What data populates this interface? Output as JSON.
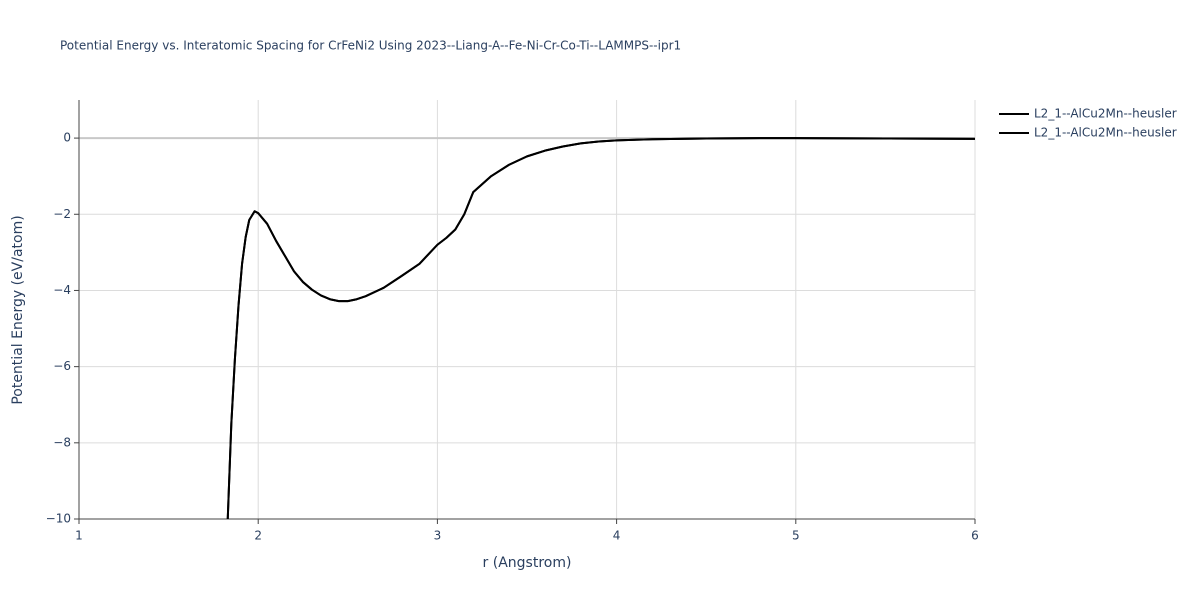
{
  "chart_data": {
    "type": "line",
    "title": "Potential Energy vs. Interatomic Spacing for CrFeNi2 Using 2023--Liang-A--Fe-Ni-Cr-Co-Ti--LAMMPS--ipr1",
    "x_label": "r (Angstrom)",
    "y_label": "Potential Energy (eV/atom)",
    "xlim": [
      1,
      6
    ],
    "ylim": [
      -10,
      1
    ],
    "xticks": [
      1,
      2,
      3,
      4,
      5,
      6
    ],
    "yticks": [
      {
        "value": -10,
        "label": "−10"
      },
      {
        "value": -8,
        "label": "−8"
      },
      {
        "value": -6,
        "label": "−6"
      },
      {
        "value": -4,
        "label": "−4"
      },
      {
        "value": -2,
        "label": "−2"
      },
      0
    ],
    "grid": true,
    "legend": "right",
    "x": [
      1.83,
      1.85,
      1.87,
      1.89,
      1.91,
      1.93,
      1.95,
      1.98,
      2.0,
      2.05,
      2.1,
      2.15,
      2.2,
      2.25,
      2.3,
      2.35,
      2.4,
      2.45,
      2.5,
      2.55,
      2.6,
      2.7,
      2.8,
      2.9,
      3.0,
      3.05,
      3.1,
      3.15,
      3.2,
      3.3,
      3.4,
      3.5,
      3.6,
      3.7,
      3.8,
      3.9,
      4.0,
      4.2,
      4.5,
      4.8,
      5.0,
      5.5,
      6.0
    ],
    "series": [
      {
        "name": "L2_1--AlCu2Mn--heusler",
        "color": "#000000",
        "values": [
          -10,
          -7.5,
          -5.8,
          -4.4,
          -3.3,
          -2.6,
          -2.15,
          -1.92,
          -1.97,
          -2.25,
          -2.7,
          -3.1,
          -3.5,
          -3.78,
          -3.98,
          -4.13,
          -4.23,
          -4.28,
          -4.28,
          -4.23,
          -4.15,
          -3.93,
          -3.62,
          -3.3,
          -2.8,
          -2.62,
          -2.4,
          -2.0,
          -1.42,
          -1.0,
          -0.7,
          -0.48,
          -0.33,
          -0.22,
          -0.14,
          -0.09,
          -0.06,
          -0.03,
          -0.01,
          0.0,
          0.0,
          -0.01,
          -0.02
        ]
      },
      {
        "name": "L2_1--AlCu2Mn--heusler",
        "color": "#000000",
        "values": [
          -10,
          -7.5,
          -5.8,
          -4.4,
          -3.3,
          -2.6,
          -2.15,
          -1.92,
          -1.97,
          -2.25,
          -2.7,
          -3.1,
          -3.5,
          -3.78,
          -3.98,
          -4.13,
          -4.23,
          -4.28,
          -4.28,
          -4.23,
          -4.15,
          -3.93,
          -3.62,
          -3.3,
          -2.8,
          -2.62,
          -2.4,
          -2.0,
          -1.42,
          -1.0,
          -0.7,
          -0.48,
          -0.33,
          -0.22,
          -0.14,
          -0.09,
          -0.06,
          -0.03,
          -0.01,
          0.0,
          0.0,
          -0.01,
          -0.02
        ]
      }
    ]
  }
}
